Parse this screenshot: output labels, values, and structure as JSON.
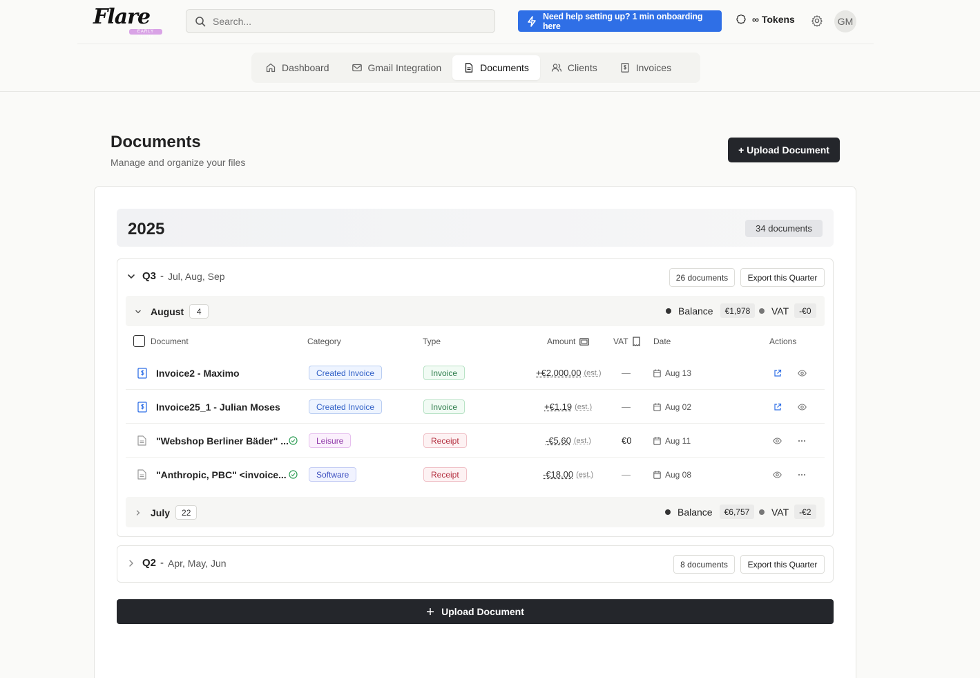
{
  "header": {
    "logo": "Flare",
    "logo_badge": "EARLY ALPHA",
    "search_placeholder": "Search...",
    "onboarding_label": "Need help setting up? 1 min onboarding here",
    "tokens_label": "∞ Tokens",
    "avatar_initials": "GM"
  },
  "nav": {
    "items": [
      {
        "label": "Dashboard",
        "icon": "home-icon"
      },
      {
        "label": "Gmail Integration",
        "icon": "mail-icon"
      },
      {
        "label": "Documents",
        "icon": "document-icon"
      },
      {
        "label": "Clients",
        "icon": "users-icon"
      },
      {
        "label": "Invoices",
        "icon": "invoice-icon"
      }
    ],
    "active": "Documents"
  },
  "page": {
    "title": "Documents",
    "subtitle": "Manage and organize your files",
    "upload_button": "+ Upload Document",
    "upload_bottom": "Upload Document"
  },
  "year": {
    "label": "2025",
    "count": "34 documents"
  },
  "q3": {
    "quarter": "Q3",
    "sep": "-",
    "months": "Jul, Aug, Sep",
    "count": "26 documents",
    "export": "Export this Quarter"
  },
  "august": {
    "label": "August",
    "count": "4",
    "balance_label": "Balance",
    "balance_value": "€1,978",
    "vat_label": "VAT",
    "vat_value": "-€0"
  },
  "july": {
    "label": "July",
    "count": "22",
    "balance_label": "Balance",
    "balance_value": "€6,757",
    "vat_label": "VAT",
    "vat_value": "-€2"
  },
  "table": {
    "headers": {
      "document": "Document",
      "category": "Category",
      "type": "Type",
      "amount": "Amount",
      "vat": "VAT",
      "date": "Date",
      "actions": "Actions"
    },
    "rows": [
      {
        "name": "Invoice2 - Maximo",
        "category": "Created Invoice",
        "type": "Invoice",
        "amount": "+€2,000.00",
        "est": "(est.)",
        "vat": "—",
        "date": "Aug 13"
      },
      {
        "name": "Invoice25_1 - Julian Moses",
        "category": "Created Invoice",
        "type": "Invoice",
        "amount": "+€1.19",
        "est": "(est.)",
        "vat": "—",
        "date": "Aug 02"
      },
      {
        "name": "\"Webshop Berliner Bäder\" ...",
        "category": "Leisure",
        "type": "Receipt",
        "amount": "-€5.60",
        "est": "(est.)",
        "vat": "€0",
        "date": "Aug 11"
      },
      {
        "name": "\"Anthropic, PBC\" <invoice...",
        "category": "Software",
        "type": "Receipt",
        "amount": "-€18.00",
        "est": "(est.)",
        "vat": "—",
        "date": "Aug 08"
      }
    ]
  },
  "q2": {
    "quarter": "Q2",
    "sep": "-",
    "months": "Apr, May, Jun",
    "count": "8 documents",
    "export": "Export this Quarter"
  },
  "colors": {
    "accent": "#2f6fe6",
    "dark_button": "#24262b"
  }
}
